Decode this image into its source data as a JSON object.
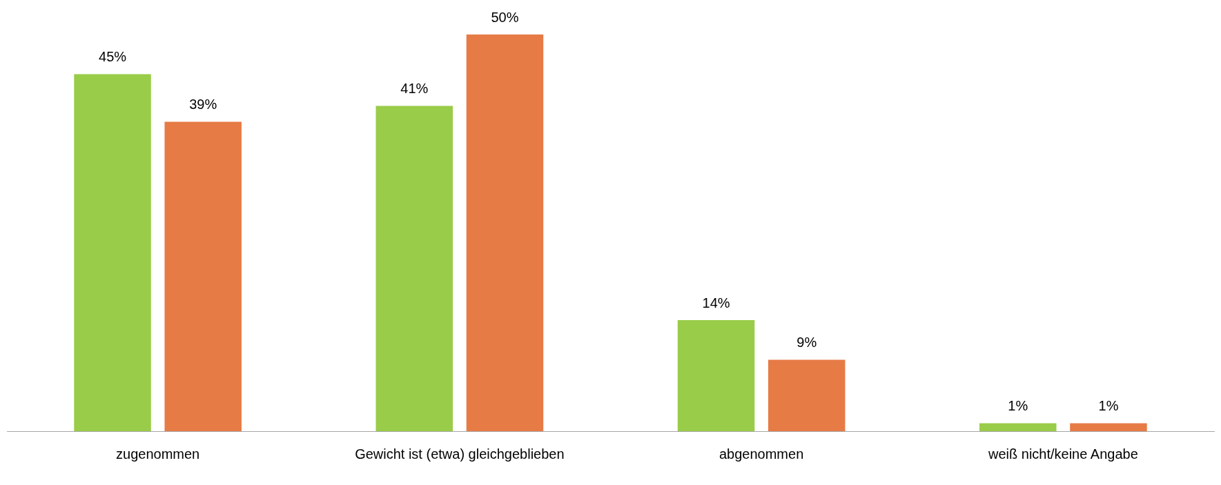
{
  "chart_data": {
    "type": "bar",
    "categories": [
      "zugenommen",
      "Gewicht ist (etwa) gleichgeblieben",
      "abgenommen",
      "weiß nicht/keine Angabe"
    ],
    "series": [
      {
        "color": "#99cc48",
        "values": [
          45,
          41,
          14,
          1
        ],
        "value_labels": [
          "45%",
          "41%",
          "14%",
          "1%"
        ]
      },
      {
        "color": "#e77b46",
        "values": [
          39,
          50,
          9,
          1
        ],
        "value_labels": [
          "39%",
          "50%",
          "9%",
          "1%"
        ]
      }
    ]
  }
}
